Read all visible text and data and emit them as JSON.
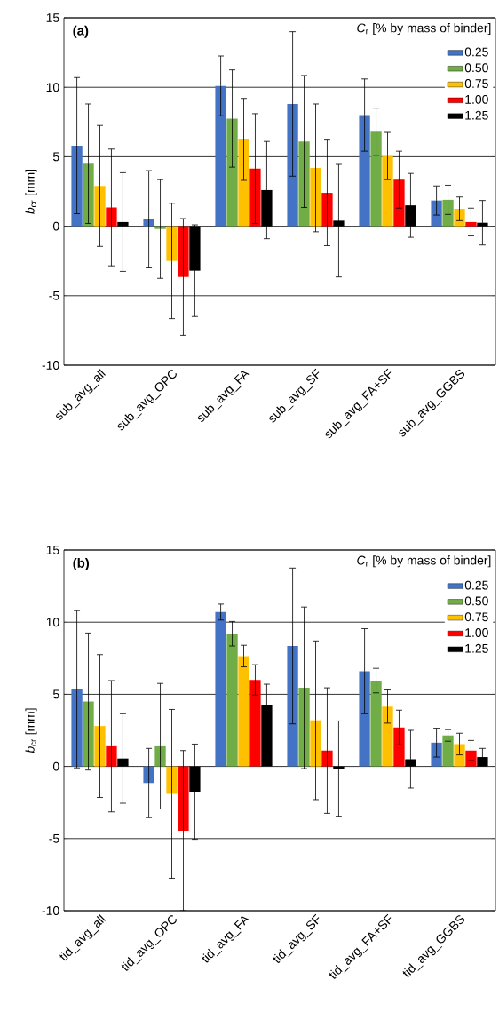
{
  "chart_data": [
    {
      "type": "bar",
      "title": "(a)",
      "ylabel": "*b*$_{cr}$ [mm]",
      "legend_title": "*C*$_{r}$ [% by mass of binder]",
      "categories": [
        "sub_avg_all",
        "sub_avg_OPC",
        "sub_avg_FA",
        "sub_avg_SF",
        "sub_avg_FA+SF",
        "sub_avg_GGBS"
      ],
      "ylim": [
        -10,
        15
      ],
      "yticks": [
        -10,
        -5,
        0,
        5,
        10,
        15
      ],
      "grid": "y",
      "legend": "top right",
      "series": [
        {
          "name": "0.25",
          "color": "#4472c4",
          "values": [
            5.8,
            0.5,
            10.1,
            8.8,
            8.0,
            1.85
          ],
          "errors": [
            4.9,
            3.5,
            2.15,
            5.2,
            2.6,
            1.05
          ]
        },
        {
          "name": "0.50",
          "color": "#70ad47",
          "values": [
            4.5,
            -0.2,
            7.75,
            6.1,
            6.8,
            1.9
          ],
          "errors": [
            4.3,
            3.55,
            3.5,
            4.75,
            1.7,
            1.05
          ]
        },
        {
          "name": "0.75",
          "color": "#ffc000",
          "values": [
            2.9,
            -2.5,
            6.25,
            4.2,
            5.05,
            1.25
          ],
          "errors": [
            4.35,
            4.15,
            2.95,
            4.6,
            1.7,
            0.85
          ]
        },
        {
          "name": "1.00",
          "color": "#ff0000",
          "values": [
            1.35,
            -3.65,
            4.15,
            2.4,
            3.35,
            0.3
          ],
          "errors": [
            4.2,
            4.2,
            3.95,
            3.8,
            2.05,
            1.0
          ]
        },
        {
          "name": "1.25",
          "color": "#000000",
          "values": [
            0.3,
            -3.2,
            2.6,
            0.4,
            1.5,
            0.25
          ],
          "errors": [
            3.55,
            3.3,
            3.5,
            4.05,
            2.3,
            1.6
          ]
        }
      ]
    },
    {
      "type": "bar",
      "title": "(b)",
      "ylabel": "*b*$_{cr}$ [mm]",
      "legend_title": "*C*$_{r}$ [% by mass of binder]",
      "categories": [
        "tid_avg_all",
        "tid_avg_OPC",
        "tid_avg_FA",
        "tid_avg_SF",
        "tid_avg_FA+SF",
        "tid_avg_GGBS"
      ],
      "ylim": [
        -10,
        15
      ],
      "yticks": [
        -10,
        -5,
        0,
        5,
        10,
        15
      ],
      "grid": "y",
      "legend": "top right",
      "series": [
        {
          "name": "0.25",
          "color": "#4472c4",
          "values": [
            5.35,
            -1.15,
            10.7,
            8.35,
            6.6,
            1.65
          ],
          "errors": [
            5.45,
            2.4,
            0.55,
            5.4,
            2.95,
            1.0
          ]
        },
        {
          "name": "0.50",
          "color": "#70ad47",
          "values": [
            4.5,
            1.4,
            9.2,
            5.45,
            5.95,
            2.15
          ],
          "errors": [
            4.75,
            4.35,
            0.85,
            5.6,
            0.85,
            0.4
          ]
        },
        {
          "name": "0.75",
          "color": "#ffc000",
          "values": [
            2.8,
            -1.9,
            7.65,
            3.2,
            4.15,
            1.55
          ],
          "errors": [
            4.95,
            5.85,
            0.75,
            5.5,
            1.15,
            0.75
          ]
        },
        {
          "name": "1.00",
          "color": "#ff0000",
          "values": [
            1.4,
            -4.45,
            6.0,
            1.1,
            2.7,
            1.1
          ],
          "errors": [
            4.55,
            5.55,
            1.05,
            4.35,
            1.2,
            0.7
          ]
        },
        {
          "name": "1.25",
          "color": "#000000",
          "values": [
            0.55,
            -1.75,
            4.25,
            -0.15,
            0.5,
            0.65
          ],
          "errors": [
            3.1,
            3.3,
            1.45,
            3.3,
            2.0,
            0.6
          ]
        }
      ]
    }
  ]
}
